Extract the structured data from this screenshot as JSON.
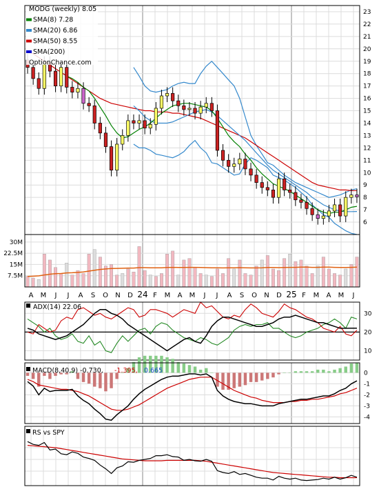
{
  "chart_data": [
    {
      "panel": "price",
      "type": "candlestick",
      "legend": [
        {
          "label": "MODG (weekly) 8.05",
          "color": "#000000"
        },
        {
          "label": "SMA(8) 7.28",
          "color": "#008000"
        },
        {
          "label": "SMA(20) 6.86",
          "color": "#3388cc"
        },
        {
          "label": "SMA(50) 8.55",
          "color": "#cc0000"
        },
        {
          "label": "SMA(200)",
          "color": "#0000cc"
        },
        {
          "label": "OptionChance.com",
          "color": "#000000"
        }
      ],
      "yticks": [
        6,
        7,
        8,
        9,
        10,
        11,
        12,
        13,
        14,
        15,
        16,
        17,
        18,
        19,
        20,
        21,
        22,
        23
      ],
      "ylim": [
        5,
        23.5
      ],
      "candle_up_color": "#ffff66",
      "candle_down_color": "#cc2222",
      "candle_alt_color": "#cc66cc",
      "close": [
        18.5,
        17.6,
        16.8,
        18.9,
        18.2,
        17.0,
        18.5,
        16.9,
        16.5,
        16.8,
        15.6,
        15.4,
        14.0,
        13.2,
        12.1,
        10.2,
        12.3,
        13.0,
        14.2,
        14.0,
        14.2,
        13.6,
        13.9,
        15.2,
        16.2,
        16.4,
        15.8,
        15.4,
        15.1,
        15.2,
        14.8,
        15.3,
        15.6,
        15.0,
        11.8,
        11.0,
        10.5,
        10.7,
        11.1,
        10.3,
        9.8,
        9.2,
        8.8,
        8.6,
        8.0,
        9.5,
        8.6,
        8.4,
        7.8,
        7.6,
        7.1,
        6.6,
        6.3,
        6.5,
        6.9,
        7.4,
        6.5,
        8.0,
        8.2,
        8.05
      ],
      "sma8": [
        null,
        null,
        null,
        null,
        null,
        null,
        null,
        17.8,
        17.6,
        17.3,
        16.9,
        16.6,
        16.0,
        15.3,
        14.6,
        13.8,
        13.2,
        12.8,
        12.9,
        13.2,
        13.5,
        13.7,
        14.0,
        14.4,
        14.8,
        15.1,
        15.4,
        15.5,
        15.6,
        15.6,
        15.5,
        15.4,
        15.3,
        15.0,
        14.4,
        13.7,
        13.0,
        12.5,
        12.1,
        11.5,
        11.0,
        10.4,
        9.9,
        9.5,
        9.1,
        8.9,
        8.7,
        8.5,
        8.2,
        7.9,
        7.6,
        7.3,
        7.0,
        6.8,
        6.7,
        6.8,
        6.8,
        7.0,
        7.2,
        7.28
      ],
      "sma20": [
        null,
        null,
        null,
        null,
        null,
        null,
        null,
        null,
        null,
        null,
        null,
        null,
        null,
        null,
        null,
        null,
        null,
        null,
        null,
        15.4,
        15.0,
        14.5,
        14.2,
        14.0,
        14.0,
        14.0,
        14.1,
        14.3,
        14.5,
        14.7,
        14.9,
        15.0,
        15.1,
        14.9,
        14.6,
        14.2,
        13.8,
        13.4,
        13.0,
        12.6,
        12.1,
        11.6,
        11.1,
        10.6,
        10.2,
        9.9,
        9.6,
        9.3,
        9.0,
        8.7,
        8.4,
        8.0,
        7.7,
        7.4,
        7.2,
        7.0,
        6.9,
        6.85,
        6.85,
        6.86
      ],
      "sma50": [
        19.8,
        19.6,
        19.3,
        19.0,
        18.7,
        18.4,
        18.1,
        17.8,
        17.5,
        17.2,
        16.9,
        16.6,
        16.3,
        16.0,
        15.8,
        15.6,
        15.5,
        15.4,
        15.3,
        15.2,
        15.1,
        15.0,
        15.0,
        14.9,
        14.9,
        14.9,
        14.8,
        14.8,
        14.7,
        14.6,
        14.5,
        14.4,
        14.2,
        14.0,
        13.8,
        13.6,
        13.4,
        13.2,
        13.0,
        12.8,
        12.5,
        12.2,
        11.9,
        11.6,
        11.3,
        11.0,
        10.7,
        10.4,
        10.1,
        9.8,
        9.5,
        9.2,
        9.0,
        8.9,
        8.8,
        8.7,
        8.6,
        8.6,
        8.55,
        8.55
      ],
      "bb_upper": [
        null,
        null,
        null,
        null,
        null,
        null,
        null,
        null,
        null,
        null,
        null,
        null,
        null,
        null,
        null,
        null,
        null,
        null,
        null,
        18.5,
        17.8,
        17.0,
        16.6,
        16.5,
        16.6,
        16.7,
        17.0,
        17.2,
        17.3,
        17.2,
        17.2,
        18.0,
        18.6,
        19.0,
        18.5,
        18.0,
        17.5,
        17.0,
        16.0,
        14.5,
        13.0,
        12.2,
        11.5,
        10.8,
        10.6,
        10.2,
        9.8,
        9.5,
        9.2,
        9.0,
        8.8,
        8.6,
        8.4,
        8.2,
        8.0,
        8.1,
        8.2,
        8.4,
        8.6,
        8.7
      ],
      "bb_lower": [
        null,
        null,
        null,
        null,
        null,
        null,
        null,
        null,
        null,
        null,
        null,
        null,
        null,
        null,
        null,
        null,
        null,
        null,
        null,
        12.3,
        12.0,
        12.0,
        11.8,
        11.5,
        11.4,
        11.3,
        11.2,
        11.4,
        11.7,
        12.2,
        12.6,
        12.0,
        11.6,
        10.8,
        10.7,
        10.4,
        10.1,
        9.8,
        9.9,
        10.7,
        11.2,
        11.0,
        10.7,
        10.4,
        9.8,
        9.6,
        9.4,
        9.1,
        8.8,
        8.4,
        8.0,
        7.4,
        7.0,
        6.6,
        6.4,
        5.9,
        5.6,
        5.3,
        5.1,
        5.0
      ]
    },
    {
      "panel": "volume",
      "type": "bar",
      "yticks": [
        "7.5M",
        "15M",
        "22.5M",
        "30M"
      ],
      "ytick_values": [
        7.5,
        15,
        22.5,
        30
      ],
      "ylim": [
        0,
        35
      ],
      "values_m": [
        7,
        6,
        5,
        22,
        18,
        13,
        9,
        16,
        8,
        11,
        9,
        22,
        25,
        20,
        14,
        15,
        8,
        9,
        12,
        10,
        27,
        11,
        8,
        7,
        9,
        22,
        24,
        8,
        18,
        19,
        13,
        9,
        8,
        7,
        12,
        9,
        19,
        12,
        18,
        9,
        8,
        14,
        18,
        21,
        12,
        11,
        19,
        22,
        17,
        18,
        14,
        9,
        14,
        20,
        12,
        9,
        8,
        12,
        15,
        20
      ],
      "avg_m": [
        7,
        7.2,
        7.4,
        8,
        8.5,
        8.9,
        9,
        9.4,
        9.5,
        9.7,
        10,
        10.6,
        11.2,
        11.7,
        12,
        12.3,
        12.4,
        12.5,
        12.6,
        12.6,
        12.9,
        12.9,
        12.8,
        12.8,
        12.8,
        13,
        13.1,
        13,
        13,
        13.1,
        13.1,
        13,
        12.9,
        12.8,
        12.8,
        12.7,
        12.8,
        12.8,
        12.9,
        12.8,
        12.7,
        12.7,
        12.8,
        13,
        13,
        12.9,
        13,
        13.1,
        13.1,
        13.2,
        13.2,
        13.1,
        13.1,
        13.2,
        13.2,
        13.1,
        13,
        13,
        13.1,
        13.2
      ],
      "bar_color": "#f2b8c0",
      "avg_color": "#e06010",
      "xticks": [
        "A",
        "M",
        "J",
        "J",
        "A",
        "S",
        "O",
        "N",
        "D",
        "24",
        "F",
        "M",
        "A",
        "M",
        "J",
        "J",
        "A",
        "S",
        "O",
        "N",
        "D",
        "25",
        "F",
        "M",
        "A",
        "M",
        "J"
      ],
      "year_marks": [
        "24",
        "25"
      ]
    },
    {
      "panel": "adx",
      "type": "line",
      "title": "ADX(14) 22.06",
      "yticks": [
        10,
        20,
        30
      ],
      "ylim": [
        5,
        36
      ],
      "adx": [
        22,
        21,
        19,
        18,
        17,
        16,
        17,
        18,
        20,
        22,
        24,
        27,
        30,
        32,
        32,
        30,
        29,
        27,
        24,
        22,
        20,
        18,
        16,
        14,
        12,
        10,
        12,
        14,
        16,
        17,
        15,
        14,
        18,
        23,
        26,
        28,
        28,
        27,
        26,
        25,
        24,
        23,
        23,
        24,
        25,
        27,
        28,
        28,
        29,
        28,
        27,
        26,
        25,
        25,
        24,
        23,
        22,
        22,
        22.1,
        22.06
      ],
      "plus_di": [
        20,
        19,
        24,
        22,
        20,
        21,
        26,
        28,
        27,
        32,
        33,
        31,
        29,
        30,
        28,
        27,
        29,
        31,
        33,
        32,
        28,
        29,
        32,
        32,
        31,
        30,
        28,
        30,
        32,
        31,
        30,
        36,
        33,
        34,
        31,
        28,
        27,
        29,
        28,
        32,
        35,
        33,
        30,
        29,
        28,
        31,
        35,
        33,
        32,
        30,
        28,
        27,
        25,
        22,
        21,
        20,
        23,
        19,
        18,
        21
      ],
      "minus_di": [
        27,
        25,
        23,
        20,
        22,
        18,
        16,
        17,
        19,
        15,
        14,
        18,
        13,
        15,
        10,
        9,
        14,
        18,
        15,
        18,
        21,
        22,
        19,
        23,
        25,
        24,
        21,
        19,
        17,
        16,
        15,
        17,
        16,
        14,
        13,
        15,
        17,
        21,
        23,
        24,
        23,
        24,
        24,
        25,
        22,
        22,
        20,
        18,
        17,
        18,
        20,
        21,
        22,
        24,
        25,
        27,
        25,
        22,
        28,
        27
      ],
      "colors": {
        "adx": "#000000",
        "plus_di": "#cc0000",
        "minus_di": "#228822"
      }
    },
    {
      "panel": "macd",
      "type": "line",
      "title": "MACD(8,40,9) -0.730,",
      "value_red": "-1.395,",
      "value_blue": "0.665",
      "yticks": [
        0,
        -1,
        -2,
        -3,
        -4
      ],
      "ylim": [
        -4.6,
        0.9
      ],
      "macd": [
        -0.8,
        -1.2,
        -2.0,
        -1.4,
        -1.7,
        -1.6,
        -1.6,
        -1.6,
        -1.5,
        -2.1,
        -2.5,
        -2.8,
        -3.3,
        -3.7,
        -4.2,
        -4.3,
        -3.8,
        -3.4,
        -3.0,
        -2.4,
        -1.9,
        -1.5,
        -1.2,
        -0.9,
        -0.6,
        -0.4,
        -0.3,
        -0.3,
        -0.2,
        -0.1,
        -0.1,
        -0.2,
        -0.1,
        -0.4,
        -1.6,
        -2.1,
        -2.4,
        -2.6,
        -2.7,
        -2.8,
        -2.8,
        -2.9,
        -3.0,
        -3.0,
        -3.0,
        -2.8,
        -2.7,
        -2.6,
        -2.5,
        -2.4,
        -2.4,
        -2.3,
        -2.2,
        -2.1,
        -2.1,
        -1.9,
        -1.6,
        -1.4,
        -1.0,
        -0.73
      ],
      "signal": [
        -0.6,
        -0.8,
        -1.1,
        -1.2,
        -1.3,
        -1.4,
        -1.5,
        -1.5,
        -1.6,
        -1.7,
        -1.9,
        -2.1,
        -2.4,
        -2.7,
        -3.0,
        -3.3,
        -3.4,
        -3.4,
        -3.3,
        -3.1,
        -2.9,
        -2.6,
        -2.3,
        -2.0,
        -1.7,
        -1.4,
        -1.2,
        -1.0,
        -0.8,
        -0.6,
        -0.5,
        -0.4,
        -0.4,
        -0.4,
        -0.7,
        -1.0,
        -1.3,
        -1.6,
        -1.8,
        -2.0,
        -2.2,
        -2.3,
        -2.5,
        -2.6,
        -2.7,
        -2.7,
        -2.7,
        -2.6,
        -2.6,
        -2.5,
        -2.5,
        -2.4,
        -2.4,
        -2.3,
        -2.2,
        -2.1,
        -1.9,
        -1.8,
        -1.6,
        -1.395
      ],
      "colors": {
        "macd": "#000000",
        "signal": "#cc0000",
        "hist_pos": "#88cc88",
        "hist_neg": "#cc7777",
        "value_blue": "#1a4fcc"
      }
    },
    {
      "panel": "rs",
      "type": "line",
      "title": "RS vs SPY",
      "ylim": [
        0,
        1
      ],
      "rs": [
        0.88,
        0.82,
        0.8,
        0.86,
        0.7,
        0.72,
        0.62,
        0.6,
        0.66,
        0.63,
        0.55,
        0.52,
        0.48,
        0.38,
        0.3,
        0.2,
        0.32,
        0.36,
        0.45,
        0.44,
        0.48,
        0.5,
        0.52,
        0.58,
        0.58,
        0.6,
        0.56,
        0.55,
        0.48,
        0.5,
        0.47,
        0.46,
        0.5,
        0.46,
        0.26,
        0.22,
        0.2,
        0.24,
        0.18,
        0.2,
        0.16,
        0.12,
        0.1,
        0.1,
        0.06,
        0.14,
        0.1,
        0.08,
        0.1,
        0.06,
        0.05,
        0.06,
        0.07,
        0.1,
        0.08,
        0.12,
        0.08,
        0.11,
        0.16,
        0.12
      ],
      "rs_ma": [
        0.8,
        0.79,
        0.78,
        0.77,
        0.76,
        0.75,
        0.73,
        0.71,
        0.69,
        0.67,
        0.65,
        0.63,
        0.61,
        0.59,
        0.57,
        0.55,
        0.53,
        0.51,
        0.5,
        0.49,
        0.48,
        0.47,
        0.47,
        0.47,
        0.47,
        0.48,
        0.48,
        0.48,
        0.48,
        0.48,
        0.48,
        0.47,
        0.46,
        0.44,
        0.42,
        0.4,
        0.38,
        0.36,
        0.34,
        0.32,
        0.3,
        0.28,
        0.26,
        0.24,
        0.22,
        0.21,
        0.2,
        0.19,
        0.18,
        0.17,
        0.16,
        0.15,
        0.14,
        0.13,
        0.12,
        0.12,
        0.11,
        0.11,
        0.11,
        0.11
      ],
      "colors": {
        "rs": "#000000",
        "rs_ma": "#cc0000"
      }
    }
  ]
}
